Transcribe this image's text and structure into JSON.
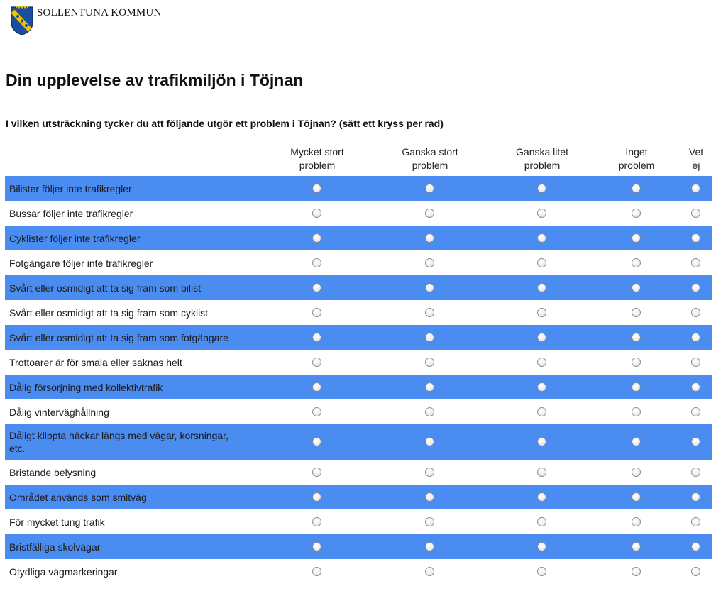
{
  "brand": {
    "name": "SOLLENTUNA KOMMUN",
    "logo_icon": "municipal-shield-icon",
    "shield_colors": [
      "#1a4fa0",
      "#f2c200"
    ]
  },
  "page": {
    "title": "Din upplevelse av trafikmiljön i Töjnan"
  },
  "question": "I vilken utsträckning tycker du att följande utgör ett problem i Töjnan? (sätt ett kryss per rad)",
  "columns": [
    {
      "label": "Mycket stort\nproblem"
    },
    {
      "label": "Ganska stort\nproblem"
    },
    {
      "label": "Ganska litet\nproblem"
    },
    {
      "label": "Inget\nproblem"
    },
    {
      "label": "Vet\nej"
    }
  ],
  "rows": [
    {
      "label": "Bilister följer inte trafikregler"
    },
    {
      "label": "Bussar följer inte trafikregler"
    },
    {
      "label": "Cyklister följer inte trafikregler"
    },
    {
      "label": "Fotgängare följer inte trafikregler"
    },
    {
      "label": "Svårt eller osmidigt att ta sig fram som bilist"
    },
    {
      "label": "Svårt eller osmidigt att ta sig fram som cyklist"
    },
    {
      "label": "Svårt eller osmidigt att ta sig fram som fotgängare"
    },
    {
      "label": "Trottoarer är för smala eller saknas helt"
    },
    {
      "label": "Dålig försörjning med kollektivtrafik"
    },
    {
      "label": "Dålig vinterväghållning"
    },
    {
      "label": "Dåligt klippta häckar längs med vägar, korsningar, etc."
    },
    {
      "label": "Bristande belysning"
    },
    {
      "label": "Området används som smitväg"
    },
    {
      "label": "För mycket tung trafik"
    },
    {
      "label": "Bristfälliga skolvägar"
    },
    {
      "label": "Otydliga vägmarkeringar"
    }
  ],
  "colors": {
    "row_highlight": "#4b8cf0",
    "background": "#ffffff"
  }
}
